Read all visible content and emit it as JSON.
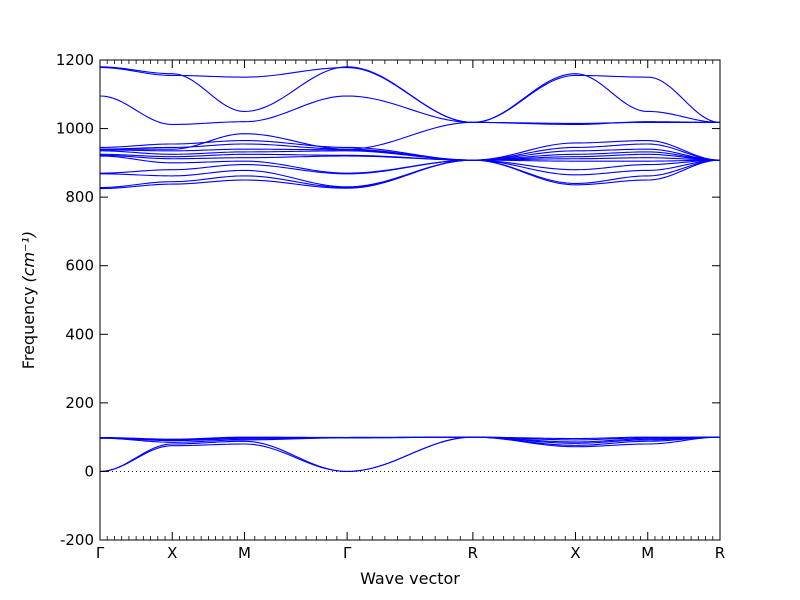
{
  "chart_data": {
    "type": "line",
    "title": "",
    "xlabel": "Wave vector",
    "ylabel": "Frequency",
    "ylabel_unit": "(cm⁻¹)",
    "ylim": [
      -200,
      1200
    ],
    "yticks": [
      -200,
      0,
      200,
      400,
      600,
      800,
      1000,
      1200
    ],
    "xlim": [
      0,
      5.73
    ],
    "xticks": [
      {
        "label": "Γ",
        "x": 0
      },
      {
        "label": "X",
        "x": 0.5
      },
      {
        "label": "M",
        "x": 1.0
      },
      {
        "label": "Γ",
        "x": 1.71
      },
      {
        "label": "R",
        "x": 2.58
      },
      {
        "label": "X",
        "x": 3.29
      },
      {
        "label": "M",
        "x": 3.79
      },
      {
        "label": "R",
        "x": 4.29
      }
    ],
    "zero_line": true,
    "grid": false,
    "legend": "none",
    "color": "#0000ff",
    "series": [
      {
        "values": [
          [
            0,
            0
          ],
          [
            0.5,
            75
          ],
          [
            1.0,
            80
          ],
          [
            1.71,
            0
          ],
          [
            2.58,
            100
          ],
          [
            3.29,
            72
          ],
          [
            3.79,
            80
          ],
          [
            4.29,
            100
          ]
        ]
      },
      {
        "values": [
          [
            0,
            0
          ],
          [
            0.5,
            80
          ],
          [
            1.0,
            88
          ],
          [
            1.71,
            0
          ],
          [
            2.58,
            100
          ],
          [
            3.29,
            76
          ],
          [
            3.79,
            88
          ],
          [
            4.29,
            100
          ]
        ]
      },
      {
        "values": [
          [
            0,
            97
          ],
          [
            0.5,
            85
          ],
          [
            1.0,
            92
          ],
          [
            1.71,
            98
          ],
          [
            2.58,
            100
          ],
          [
            3.29,
            82
          ],
          [
            3.79,
            92
          ],
          [
            4.29,
            100
          ]
        ]
      },
      {
        "values": [
          [
            0,
            97
          ],
          [
            0.5,
            90
          ],
          [
            1.0,
            95
          ],
          [
            1.71,
            98
          ],
          [
            2.58,
            100
          ],
          [
            3.29,
            86
          ],
          [
            3.79,
            95
          ],
          [
            4.29,
            100
          ]
        ]
      },
      {
        "values": [
          [
            0,
            98
          ],
          [
            0.5,
            92
          ],
          [
            1.0,
            98
          ],
          [
            1.71,
            99
          ],
          [
            2.58,
            100
          ],
          [
            3.29,
            92
          ],
          [
            3.79,
            98
          ],
          [
            4.29,
            100
          ]
        ]
      },
      {
        "values": [
          [
            0,
            99
          ],
          [
            0.5,
            94
          ],
          [
            1.0,
            100
          ],
          [
            1.71,
            99
          ],
          [
            2.58,
            100
          ],
          [
            3.29,
            96
          ],
          [
            3.79,
            100
          ],
          [
            4.29,
            100
          ]
        ]
      },
      {
        "values": [
          [
            0,
            825
          ],
          [
            0.5,
            838
          ],
          [
            1.0,
            850
          ],
          [
            1.71,
            826
          ],
          [
            2.58,
            908
          ],
          [
            3.29,
            836
          ],
          [
            3.79,
            850
          ],
          [
            4.29,
            908
          ]
        ]
      },
      {
        "values": [
          [
            0,
            828
          ],
          [
            0.5,
            845
          ],
          [
            1.0,
            862
          ],
          [
            1.71,
            828
          ],
          [
            2.58,
            908
          ],
          [
            3.29,
            840
          ],
          [
            3.79,
            862
          ],
          [
            4.29,
            908
          ]
        ]
      },
      {
        "values": [
          [
            0,
            868
          ],
          [
            0.5,
            862
          ],
          [
            1.0,
            878
          ],
          [
            1.71,
            830
          ],
          [
            2.58,
            908
          ],
          [
            3.29,
            865
          ],
          [
            3.79,
            878
          ],
          [
            4.29,
            908
          ]
        ]
      },
      {
        "values": [
          [
            0,
            870
          ],
          [
            0.5,
            880
          ],
          [
            1.0,
            895
          ],
          [
            1.71,
            868
          ],
          [
            2.58,
            908
          ],
          [
            3.29,
            880
          ],
          [
            3.79,
            895
          ],
          [
            4.29,
            908
          ]
        ]
      },
      {
        "values": [
          [
            0,
            920
          ],
          [
            0.5,
            900
          ],
          [
            1.0,
            905
          ],
          [
            1.71,
            870
          ],
          [
            2.58,
            908
          ],
          [
            3.29,
            905
          ],
          [
            3.79,
            905
          ],
          [
            4.29,
            908
          ]
        ]
      },
      {
        "values": [
          [
            0,
            922
          ],
          [
            0.5,
            912
          ],
          [
            1.0,
            915
          ],
          [
            1.71,
            920
          ],
          [
            2.58,
            908
          ],
          [
            3.29,
            912
          ],
          [
            3.79,
            915
          ],
          [
            4.29,
            908
          ]
        ]
      },
      {
        "values": [
          [
            0,
            925
          ],
          [
            0.5,
            918
          ],
          [
            1.0,
            925
          ],
          [
            1.71,
            922
          ],
          [
            2.58,
            908
          ],
          [
            3.29,
            918
          ],
          [
            3.79,
            925
          ],
          [
            4.29,
            908
          ]
        ]
      },
      {
        "values": [
          [
            0,
            935
          ],
          [
            0.5,
            925
          ],
          [
            1.0,
            932
          ],
          [
            1.71,
            935
          ],
          [
            2.58,
            908
          ],
          [
            3.29,
            925
          ],
          [
            3.79,
            932
          ],
          [
            4.29,
            908
          ]
        ]
      },
      {
        "values": [
          [
            0,
            938
          ],
          [
            0.5,
            935
          ],
          [
            1.0,
            940
          ],
          [
            1.71,
            938
          ],
          [
            2.58,
            908
          ],
          [
            3.29,
            935
          ],
          [
            3.79,
            940
          ],
          [
            4.29,
            908
          ]
        ]
      },
      {
        "values": [
          [
            0,
            940
          ],
          [
            0.5,
            945
          ],
          [
            1.0,
            955
          ],
          [
            1.71,
            940
          ],
          [
            2.58,
            908
          ],
          [
            3.29,
            945
          ],
          [
            3.79,
            955
          ],
          [
            4.29,
            908
          ]
        ]
      },
      {
        "values": [
          [
            0,
            945
          ],
          [
            0.5,
            955
          ],
          [
            1.0,
            965
          ],
          [
            1.71,
            945
          ],
          [
            2.58,
            908
          ],
          [
            3.29,
            958
          ],
          [
            3.79,
            965
          ],
          [
            4.29,
            908
          ]
        ]
      },
      {
        "values": [
          [
            0,
            940
          ],
          [
            0.5,
            940
          ],
          [
            1.0,
            985
          ],
          [
            1.71,
            940
          ],
          [
            2.58,
            1018
          ],
          [
            3.29,
            1015
          ],
          [
            3.79,
            1018
          ],
          [
            4.29,
            1018
          ]
        ]
      },
      {
        "values": [
          [
            0,
            1095
          ],
          [
            0.5,
            1012
          ],
          [
            1.0,
            1020
          ],
          [
            1.71,
            1095
          ],
          [
            2.58,
            1018
          ],
          [
            3.29,
            1012
          ],
          [
            3.79,
            1020
          ],
          [
            4.29,
            1018
          ]
        ]
      },
      {
        "values": [
          [
            0,
            1178
          ],
          [
            0.5,
            1155
          ],
          [
            1.0,
            1150
          ],
          [
            1.71,
            1178
          ],
          [
            2.58,
            1018
          ],
          [
            3.29,
            1155
          ],
          [
            3.79,
            1150
          ],
          [
            4.29,
            1018
          ]
        ]
      },
      {
        "values": [
          [
            0,
            1180
          ],
          [
            0.5,
            1160
          ],
          [
            1.0,
            1050
          ],
          [
            1.71,
            1180
          ],
          [
            2.58,
            1018
          ],
          [
            3.29,
            1160
          ],
          [
            3.79,
            1050
          ],
          [
            4.29,
            1018
          ]
        ]
      }
    ]
  }
}
